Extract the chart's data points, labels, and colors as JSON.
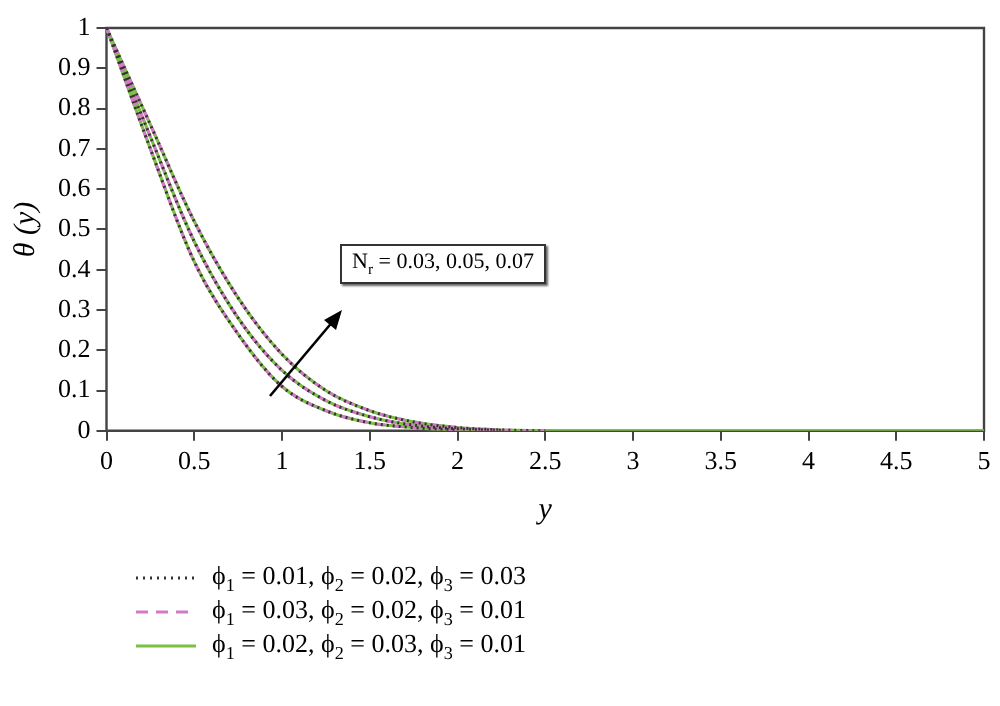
{
  "chart_data": {
    "type": "line",
    "xlabel": "y",
    "ylabel": "θ (y)",
    "x": [
      0,
      0.25,
      0.5,
      0.75,
      1,
      1.25,
      1.5,
      1.75,
      2,
      2.25,
      2.5,
      3,
      3.5,
      4,
      4.5,
      5
    ],
    "series": [
      {
        "name": "ϕ$_{1}$ = 0.01, ϕ$_{2}$ = 0.02, ϕ$_{3}$ = 0.03",
        "color": "#333333",
        "line_style": "dotted",
        "values": [
          1,
          0.7,
          0.42,
          0.24,
          0.11,
          0.05,
          0.02,
          0.008,
          0.002,
          null,
          null,
          null,
          null,
          null,
          null,
          null
        ]
      },
      {
        "color": "#333333",
        "line_style": "dotted",
        "values": [
          1,
          0.73,
          0.47,
          0.28,
          0.15,
          0.075,
          0.035,
          0.014,
          0.005,
          0.001,
          null,
          null,
          null,
          null,
          null,
          null
        ]
      },
      {
        "color": "#333333",
        "line_style": "dotted",
        "values": [
          1,
          0.76,
          0.52,
          0.33,
          0.19,
          0.1,
          0.05,
          0.022,
          0.008,
          0.002,
          0,
          null,
          null,
          null,
          null,
          null
        ]
      },
      {
        "name": "ϕ$_{1}$ = 0.03, ϕ$_{2}$ = 0.02, ϕ$_{3}$ = 0.01",
        "color": "#d678c8",
        "line_style": "dashed",
        "values": [
          1,
          0.7,
          0.42,
          0.24,
          0.11,
          0.05,
          0.02,
          0.008,
          0.002,
          null,
          null,
          null,
          null,
          null,
          null,
          null
        ]
      },
      {
        "color": "#d678c8",
        "line_style": "dashed",
        "values": [
          1,
          0.73,
          0.47,
          0.28,
          0.15,
          0.075,
          0.035,
          0.014,
          0.005,
          0.001,
          null,
          null,
          null,
          null,
          null,
          null
        ]
      },
      {
        "color": "#d678c8",
        "line_style": "dashed",
        "values": [
          1,
          0.76,
          0.52,
          0.33,
          0.19,
          0.1,
          0.05,
          0.022,
          0.008,
          0.002,
          0,
          null,
          null,
          null,
          null,
          null
        ]
      },
      {
        "name": "ϕ$_{1}$ = 0.02, ϕ$_{2}$ = 0.03, ϕ$_{3}$ = 0.01",
        "color": "#7ac143",
        "line_style": "solid",
        "values": [
          1,
          0.7,
          0.42,
          0.24,
          0.11,
          0.05,
          0.02,
          0.008,
          0.002,
          0,
          0,
          0,
          0,
          0,
          0,
          0
        ]
      },
      {
        "color": "#7ac143",
        "line_style": "solid",
        "values": [
          1,
          0.73,
          0.47,
          0.28,
          0.15,
          0.075,
          0.035,
          0.014,
          0.005,
          0.001,
          null,
          null,
          null,
          null,
          null,
          null
        ]
      },
      {
        "color": "#7ac143",
        "line_style": "solid",
        "values": [
          1,
          0.76,
          0.52,
          0.33,
          0.19,
          0.1,
          0.05,
          0.022,
          0.008,
          0.002,
          0,
          null,
          null,
          null,
          null,
          null
        ]
      }
    ],
    "xlim": [
      0,
      5
    ],
    "xticks": [
      0,
      0.5,
      1,
      1.5,
      2,
      2.5,
      3,
      3.5,
      4,
      4.5,
      5
    ],
    "ylim": [
      0,
      1
    ],
    "yticks": [
      0,
      0.1,
      0.2,
      0.3,
      0.4,
      0.5,
      0.6,
      0.7,
      0.8,
      0.9,
      1
    ],
    "grid": false,
    "legend": "bottom",
    "marker": "none",
    "annotations": [
      "N$_{r}$ = 0.03, 0.05, 0.07"
    ]
  }
}
